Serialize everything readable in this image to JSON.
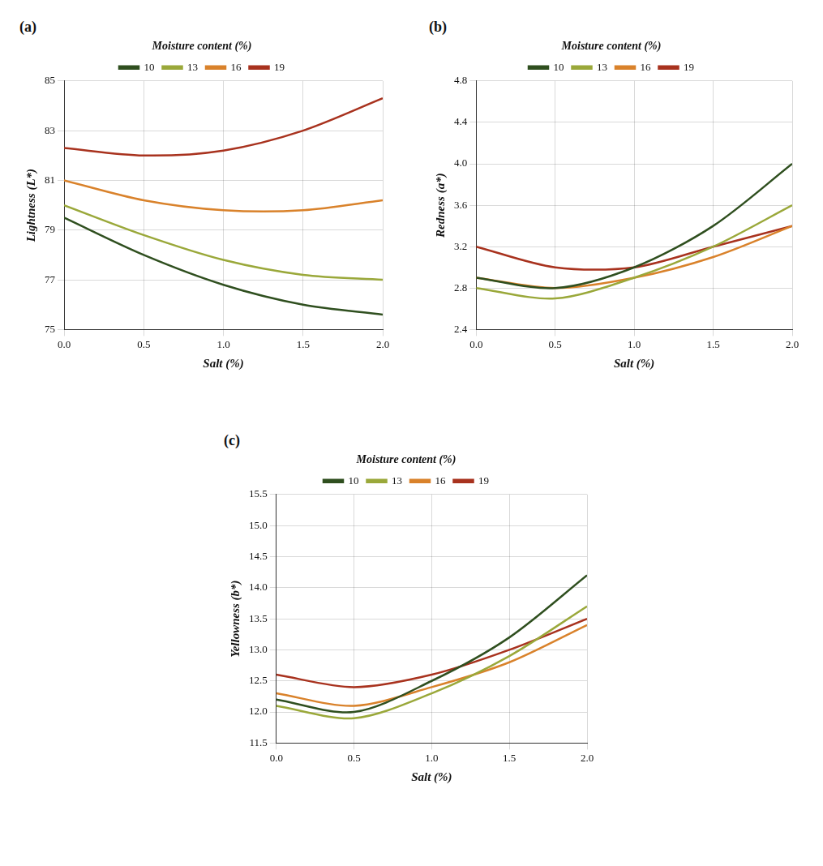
{
  "chart_data": [
    {
      "type": "line",
      "title": "(a)",
      "x_label": "Salt (%)",
      "y_label": "Lightness (L*)",
      "series_label": "Moisture content (%)",
      "x": [
        0,
        0.5,
        1,
        1.5,
        2
      ],
      "series": [
        {
          "name": "10",
          "color": "#2f4f1f",
          "values": [
            79.5,
            78.0,
            76.8,
            76.0,
            75.6
          ]
        },
        {
          "name": "13",
          "color": "#9aa83a",
          "values": [
            80.0,
            78.8,
            77.8,
            77.2,
            77.0
          ]
        },
        {
          "name": "16",
          "color": "#d9822b",
          "values": [
            81.0,
            80.2,
            79.8,
            79.8,
            80.2
          ]
        },
        {
          "name": "19",
          "color": "#a8321e",
          "values": [
            82.3,
            82.0,
            82.2,
            83.0,
            84.3
          ]
        }
      ],
      "xlim": [
        0,
        2
      ],
      "xticks": [
        {
          "value": 0,
          "label": "0.0"
        },
        0.5,
        {
          "value": 1,
          "label": "1.0"
        },
        1.5,
        {
          "value": 2,
          "label": "2.0"
        }
      ],
      "ylim": [
        75,
        85
      ],
      "yticks": [
        75,
        77,
        79,
        81,
        83,
        85
      ],
      "grid": true,
      "legend": "top"
    },
    {
      "type": "line",
      "title": "(b)",
      "x_label": "Salt (%)",
      "y_label": "Redness (a*)",
      "series_label": "Moisture content (%)",
      "x": [
        0,
        0.5,
        1,
        1.5,
        2
      ],
      "series": [
        {
          "name": "10",
          "color": "#2f4f1f",
          "values": [
            2.9,
            2.8,
            3.0,
            3.4,
            4.0
          ]
        },
        {
          "name": "13",
          "color": "#9aa83a",
          "values": [
            2.8,
            2.7,
            2.9,
            3.2,
            3.6
          ]
        },
        {
          "name": "16",
          "color": "#d9822b",
          "values": [
            2.9,
            2.8,
            2.9,
            3.1,
            3.4
          ]
        },
        {
          "name": "19",
          "color": "#a8321e",
          "values": [
            3.2,
            3.0,
            3.0,
            3.2,
            3.4
          ]
        }
      ],
      "xlim": [
        0,
        2
      ],
      "xticks": [
        {
          "value": 0,
          "label": "0.0"
        },
        0.5,
        {
          "value": 1,
          "label": "1.0"
        },
        1.5,
        {
          "value": 2,
          "label": "2.0"
        }
      ],
      "ylim": [
        2.4,
        4.8
      ],
      "yticks": [
        2.4,
        2.8,
        3.2,
        3.6,
        {
          "value": 4,
          "label": "4.0"
        },
        4.4,
        4.8
      ],
      "grid": true,
      "legend": "top"
    },
    {
      "type": "line",
      "title": "(c)",
      "x_label": "Salt (%)",
      "y_label": "Yellowness (b*)",
      "series_label": "Moisture content (%)",
      "x": [
        0,
        0.5,
        1,
        1.5,
        2
      ],
      "series": [
        {
          "name": "10",
          "color": "#2f4f1f",
          "values": [
            12.2,
            12.0,
            12.5,
            13.2,
            14.2
          ]
        },
        {
          "name": "13",
          "color": "#9aa83a",
          "values": [
            12.1,
            11.9,
            12.3,
            12.9,
            13.7
          ]
        },
        {
          "name": "16",
          "color": "#d9822b",
          "values": [
            12.3,
            12.1,
            12.4,
            12.8,
            13.4
          ]
        },
        {
          "name": "19",
          "color": "#a8321e",
          "values": [
            12.6,
            12.4,
            12.6,
            13.0,
            13.5
          ]
        }
      ],
      "xlim": [
        0,
        2
      ],
      "xticks": [
        {
          "value": 0,
          "label": "0.0"
        },
        0.5,
        {
          "value": 1,
          "label": "1.0"
        },
        1.5,
        {
          "value": 2,
          "label": "2.0"
        }
      ],
      "ylim": [
        11.5,
        15.5
      ],
      "yticks": [
        11.5,
        {
          "value": 12,
          "label": "12.0"
        },
        12.5,
        {
          "value": 13,
          "label": "13.0"
        },
        13.5,
        {
          "value": 14,
          "label": "14.0"
        },
        14.5,
        {
          "value": 15,
          "label": "15.0"
        },
        15.5
      ],
      "grid": true,
      "legend": "top"
    }
  ]
}
